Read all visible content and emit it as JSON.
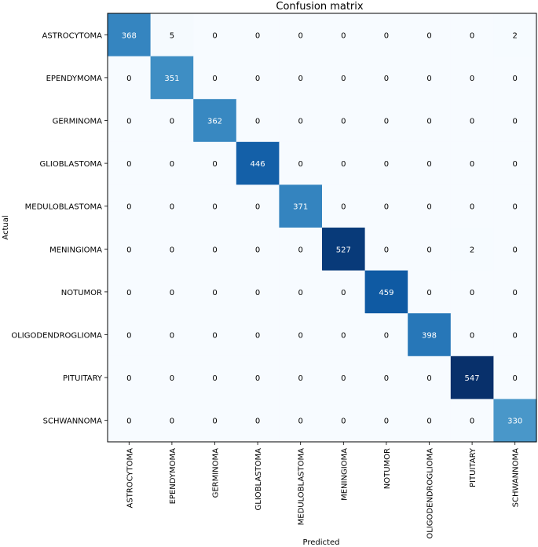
{
  "chart_data": {
    "type": "heatmap",
    "title": "Confusion matrix",
    "xlabel": "Predicted",
    "ylabel": "Actual",
    "row_labels": [
      "ASTROCYTOMA",
      "EPENDYMOMA",
      "GERMINOMA",
      "GLIOBLASTOMA",
      "MEDULOBLASTOMA",
      "MENINGIOMA",
      "NOTUMOR",
      "OLIGODENDROGLIOMA",
      "PITUITARY",
      "SCHWANNOMA"
    ],
    "col_labels": [
      "ASTROCYTOMA",
      "EPENDYMOMA",
      "GERMINOMA",
      "GLIOBLASTOMA",
      "MEDULOBLASTOMA",
      "MENINGIOMA",
      "NOTUMOR",
      "OLIGODENDROGLIOMA",
      "PITUITARY",
      "SCHWANNOMA"
    ],
    "values": [
      [
        368,
        5,
        0,
        0,
        0,
        0,
        0,
        0,
        0,
        2
      ],
      [
        0,
        351,
        0,
        0,
        0,
        0,
        0,
        0,
        0,
        0
      ],
      [
        0,
        0,
        362,
        0,
        0,
        0,
        0,
        0,
        0,
        0
      ],
      [
        0,
        0,
        0,
        446,
        0,
        0,
        0,
        0,
        0,
        0
      ],
      [
        0,
        0,
        0,
        0,
        371,
        0,
        0,
        0,
        0,
        0
      ],
      [
        0,
        0,
        0,
        0,
        0,
        527,
        0,
        0,
        2,
        0
      ],
      [
        0,
        0,
        0,
        0,
        0,
        0,
        459,
        0,
        0,
        0
      ],
      [
        0,
        0,
        0,
        0,
        0,
        0,
        0,
        398,
        0,
        0
      ],
      [
        0,
        0,
        0,
        0,
        0,
        0,
        0,
        0,
        547,
        0
      ],
      [
        0,
        0,
        0,
        0,
        0,
        0,
        0,
        0,
        0,
        330
      ]
    ],
    "colormap": "Blues",
    "colormap_stops": [
      "#f7fbff",
      "#deebf7",
      "#c6dbef",
      "#9ecae1",
      "#6baed6",
      "#4292c6",
      "#2171b5",
      "#08519c",
      "#08306b"
    ]
  }
}
